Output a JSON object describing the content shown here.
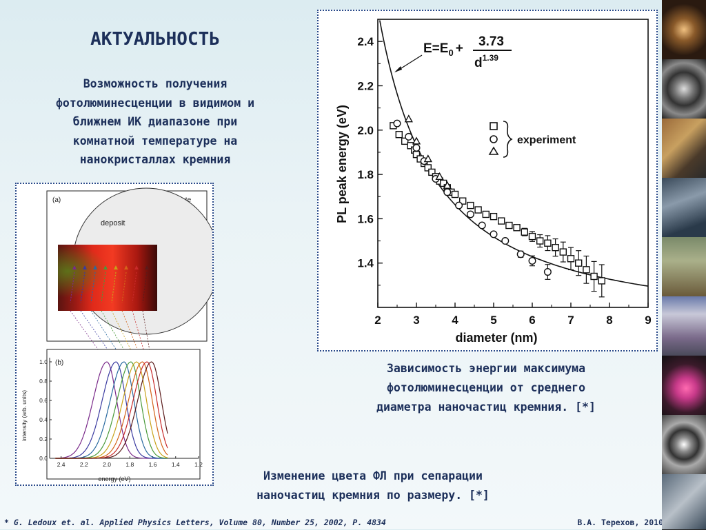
{
  "title": "АКТУАЛЬНОСТЬ",
  "intro_lines": [
    "Возможность получения",
    "фотолюминесценции в видимом и",
    "ближнем ИК диапазоне при",
    "комнатной температуре на",
    "нанокристаллах кремния"
  ],
  "left_figure": {
    "panel_a": {
      "label": "(a)",
      "substrate_label": "substrate",
      "deposit_label": "deposit"
    },
    "panel_b": {
      "label": "(b)",
      "ylabel": "intensity (arb. units)",
      "xlabel": "energy (eV)",
      "xticks": [
        "2.4",
        "2.2",
        "2.0",
        "1.8",
        "1.6",
        "1.4",
        "1.2"
      ],
      "yticks": [
        "0.0",
        "0.2",
        "0.4",
        "0.6",
        "0.8",
        "1.0"
      ]
    },
    "caption_lines": [
      "Изменение цвета ФЛ при сепарации",
      "наночастиц кремния по размеру. [*]"
    ]
  },
  "chart_data": {
    "type": "scatter",
    "ylabel": "PL peak energy (eV)",
    "xlabel": "diameter (nm)",
    "xlim": [
      2,
      9
    ],
    "ylim": [
      1.2,
      2.5
    ],
    "xticks": [
      2,
      3,
      4,
      5,
      6,
      7,
      8,
      9
    ],
    "yticks": [
      1.4,
      1.6,
      1.8,
      2.0,
      2.2,
      2.4
    ],
    "yticks_labels": [
      "1.4",
      "1.6",
      "1.8",
      "2.0",
      "2.2",
      "2.4"
    ],
    "formula": {
      "lhs": "E=E",
      "sub": "0",
      "plus": "+",
      "numerator": "3.73",
      "base": "d",
      "exponent": "1.39"
    },
    "legend_label": "experiment",
    "series": [
      {
        "marker": "square",
        "points": [
          [
            2.4,
            2.02
          ],
          [
            2.55,
            1.98
          ],
          [
            2.7,
            1.95
          ],
          [
            2.85,
            1.93
          ],
          [
            2.95,
            1.91
          ],
          [
            3.0,
            1.89
          ],
          [
            3.1,
            1.87
          ],
          [
            3.2,
            1.85
          ],
          [
            3.3,
            1.83
          ],
          [
            3.4,
            1.81
          ],
          [
            3.5,
            1.79
          ],
          [
            3.6,
            1.77
          ],
          [
            3.7,
            1.76
          ],
          [
            3.8,
            1.74
          ],
          [
            3.9,
            1.72
          ],
          [
            4.0,
            1.71
          ],
          [
            4.2,
            1.68
          ],
          [
            4.4,
            1.66
          ],
          [
            4.6,
            1.64
          ],
          [
            4.8,
            1.62
          ],
          [
            5.0,
            1.61
          ],
          [
            5.2,
            1.59
          ],
          [
            5.4,
            1.57
          ],
          [
            5.6,
            1.56
          ],
          [
            5.8,
            1.54
          ],
          [
            6.0,
            1.52
          ],
          [
            6.2,
            1.5
          ],
          [
            6.4,
            1.49
          ],
          [
            6.6,
            1.47
          ],
          [
            6.8,
            1.45
          ],
          [
            7.0,
            1.42
          ],
          [
            7.2,
            1.4
          ],
          [
            7.4,
            1.37
          ],
          [
            7.6,
            1.34
          ],
          [
            7.8,
            1.32
          ]
        ]
      },
      {
        "marker": "circle",
        "points": [
          [
            2.5,
            2.03
          ],
          [
            2.8,
            1.97
          ],
          [
            3.0,
            1.92
          ],
          [
            3.2,
            1.86
          ],
          [
            3.5,
            1.78
          ],
          [
            3.8,
            1.72
          ],
          [
            4.1,
            1.66
          ],
          [
            4.4,
            1.62
          ],
          [
            4.7,
            1.57
          ],
          [
            5.0,
            1.53
          ],
          [
            5.3,
            1.5
          ],
          [
            5.7,
            1.44
          ],
          [
            6.0,
            1.41
          ],
          [
            6.4,
            1.36
          ]
        ]
      },
      {
        "marker": "triangle",
        "points": [
          [
            2.8,
            2.05
          ],
          [
            3.0,
            1.95
          ],
          [
            3.3,
            1.87
          ],
          [
            3.6,
            1.79
          ],
          [
            3.8,
            1.75
          ]
        ]
      }
    ],
    "fit_curve": {
      "label": "E=E0+3.73/d^1.39",
      "E0": 1.12,
      "A": 3.73,
      "p": 1.39
    },
    "caption_lines": [
      "Зависимость энергии максимума",
      "фотолюминесценции от  среднего",
      "диаметра наночастиц кремния. [*]"
    ]
  },
  "footer": {
    "citation": "* G. Ledoux et. al. Applied Physics Letters, Volume 80, Number 25, 2002, P. 4834",
    "author": "В.А. Терехов, 2010"
  },
  "colors": {
    "title": "#1c2f5a",
    "frame": "#2a4a8a",
    "spectra": [
      "#7a2a8a",
      "#3a3aa0",
      "#2a6aa0",
      "#4a9a3a",
      "#c8a21a",
      "#d4641a",
      "#c82a2a",
      "#5a1a1a"
    ]
  },
  "sidebar": {
    "thumbnails": [
      "lab-photo-1",
      "lab-photo-2",
      "lab-photo-3",
      "lab-photo-4",
      "lab-photo-5",
      "lab-photo-6",
      "lab-photo-7",
      "lab-photo-8",
      "lab-photo-9"
    ]
  }
}
